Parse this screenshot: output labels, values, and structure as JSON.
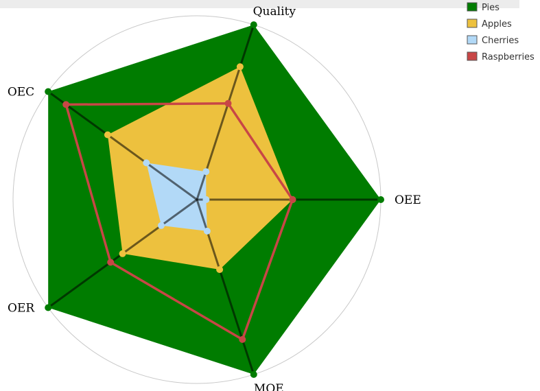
{
  "chart_data": {
    "type": "radar",
    "axes": [
      "OEE",
      "Quality",
      "OEC",
      "OER",
      "MOE"
    ],
    "rmax": 100,
    "rings": [
      20,
      40,
      60,
      80,
      100
    ],
    "grid": true,
    "legend_placement": "top-right",
    "series": [
      {
        "name": "Pies",
        "values": [
          100,
          100,
          100,
          100,
          100
        ],
        "color": "#007c00",
        "fill": true,
        "fillOpacity": 1,
        "strokeWidth": 0
      },
      {
        "name": "Apples",
        "values": [
          52,
          76,
          60,
          50,
          40
        ],
        "color": "#edc13e",
        "fill": true,
        "fillOpacity": 1,
        "strokeWidth": 0
      },
      {
        "name": "Cherries",
        "values": [
          5,
          16,
          34,
          24,
          18
        ],
        "color": "#b2d9f7",
        "fill": true,
        "fillOpacity": 1,
        "strokeWidth": 0
      },
      {
        "name": "Raspberries",
        "values": [
          52,
          55,
          88,
          58,
          80
        ],
        "color": "#c84646",
        "fill": false,
        "fillOpacity": 0,
        "strokeWidth": 3.5
      }
    ]
  }
}
